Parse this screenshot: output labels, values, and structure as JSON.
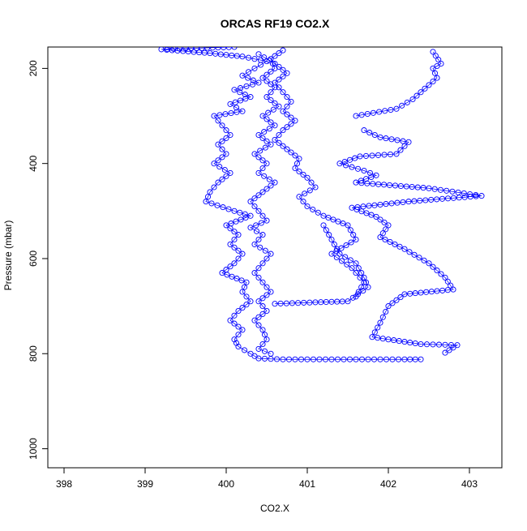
{
  "chart_data": {
    "type": "scatter",
    "title": "ORCAS RF19 CO2.X",
    "xlabel": "CO2.X",
    "ylabel": "Pressure (mbar)",
    "xlim": [
      397.8,
      403.4
    ],
    "ylim": [
      1040,
      155
    ],
    "y_inverted": true,
    "grid": false,
    "x_ticks": [
      398,
      399,
      400,
      401,
      402,
      403
    ],
    "y_ticks": [
      200,
      400,
      600,
      800,
      1000
    ],
    "colors": {
      "series": "#0000ff",
      "axes": "#000000"
    },
    "series": [
      {
        "segments": [
          [
            [
              400.1,
              155
            ],
            [
              399.5,
              158
            ],
            [
              399.2,
              160
            ],
            [
              399.8,
              168
            ],
            [
              400.2,
              175
            ],
            [
              400.5,
              185
            ],
            [
              400.35,
              200
            ],
            [
              400.2,
              215
            ],
            [
              400.4,
              230
            ],
            [
              400.1,
              245
            ],
            [
              400.3,
              260
            ],
            [
              400.05,
              275
            ],
            [
              400.2,
              290
            ],
            [
              399.85,
              300
            ],
            [
              399.95,
              320
            ],
            [
              400.05,
              340
            ],
            [
              399.9,
              360
            ],
            [
              400.0,
              380
            ],
            [
              399.85,
              400
            ],
            [
              400.05,
              420
            ],
            [
              399.9,
              440
            ],
            [
              399.8,
              460
            ],
            [
              399.75,
              480
            ],
            [
              400.1,
              500
            ],
            [
              400.3,
              510
            ],
            [
              400.0,
              530
            ],
            [
              400.15,
              550
            ],
            [
              400.05,
              570
            ],
            [
              400.2,
              590
            ],
            [
              400.1,
              610
            ],
            [
              399.95,
              630
            ],
            [
              400.25,
              650
            ],
            [
              400.2,
              670
            ],
            [
              400.3,
              690
            ],
            [
              400.15,
              710
            ],
            [
              400.05,
              730
            ],
            [
              400.2,
              750
            ],
            [
              400.1,
              770
            ],
            [
              400.15,
              785
            ],
            [
              400.3,
              800
            ],
            [
              400.4,
              810
            ],
            [
              400.7,
              812
            ],
            [
              401.0,
              812
            ],
            [
              401.3,
              812
            ],
            [
              401.6,
              812
            ],
            [
              401.9,
              812
            ],
            [
              402.2,
              812
            ],
            [
              402.4,
              812
            ]
          ],
          [
            [
              400.7,
              162
            ],
            [
              400.55,
              180
            ],
            [
              400.6,
              200
            ],
            [
              400.45,
              220
            ],
            [
              400.6,
              240
            ],
            [
              400.5,
              260
            ],
            [
              400.65,
              280
            ],
            [
              400.45,
              300
            ],
            [
              400.6,
              320
            ],
            [
              400.4,
              340
            ],
            [
              400.55,
              360
            ],
            [
              400.35,
              380
            ],
            [
              400.5,
              400
            ],
            [
              400.4,
              420
            ],
            [
              400.6,
              440
            ],
            [
              400.45,
              460
            ],
            [
              400.3,
              480
            ],
            [
              400.4,
              500
            ],
            [
              400.5,
              520
            ],
            [
              400.3,
              535
            ],
            [
              400.45,
              550
            ],
            [
              400.35,
              570
            ],
            [
              400.55,
              590
            ],
            [
              400.45,
              610
            ],
            [
              400.35,
              630
            ],
            [
              400.45,
              650
            ],
            [
              400.55,
              670
            ],
            [
              400.4,
              690
            ],
            [
              400.5,
              710
            ],
            [
              400.35,
              730
            ],
            [
              400.45,
              750
            ],
            [
              400.5,
              770
            ],
            [
              400.4,
              790
            ],
            [
              400.55,
              800
            ]
          ],
          [
            [
              400.4,
              170
            ],
            [
              400.6,
              190
            ],
            [
              400.75,
              210
            ],
            [
              400.6,
              230
            ],
            [
              400.7,
              250
            ],
            [
              400.8,
              270
            ],
            [
              400.7,
              290
            ],
            [
              400.85,
              310
            ],
            [
              400.7,
              330
            ],
            [
              400.6,
              350
            ],
            [
              400.75,
              370
            ],
            [
              400.9,
              390
            ],
            [
              400.85,
              410
            ],
            [
              401.0,
              430
            ],
            [
              401.1,
              450
            ],
            [
              400.9,
              470
            ],
            [
              401.0,
              490
            ],
            [
              401.2,
              510
            ],
            [
              401.5,
              530
            ],
            [
              401.6,
              560
            ],
            [
              401.3,
              590
            ],
            [
              401.55,
              620
            ],
            [
              401.7,
              650
            ],
            [
              401.6,
              680
            ]
          ],
          [
            [
              401.2,
              530
            ],
            [
              401.3,
              560
            ],
            [
              401.4,
              590
            ],
            [
              401.6,
              610
            ],
            [
              401.7,
              640
            ],
            [
              401.75,
              660
            ],
            [
              401.5,
              690
            ],
            [
              401.1,
              692
            ],
            [
              400.6,
              695
            ]
          ],
          [
            [
              401.6,
              300
            ],
            [
              402.1,
              285
            ],
            [
              402.3,
              265
            ],
            [
              402.4,
              250
            ],
            [
              402.5,
              235
            ],
            [
              402.6,
              220
            ],
            [
              402.55,
              200
            ],
            [
              402.65,
              190
            ],
            [
              402.55,
              165
            ]
          ],
          [
            [
              401.7,
              330
            ],
            [
              401.9,
              345
            ],
            [
              402.25,
              355
            ],
            [
              402.1,
              380
            ],
            [
              401.65,
              385
            ],
            [
              401.4,
              400
            ],
            [
              401.7,
              415
            ],
            [
              401.85,
              425
            ],
            [
              401.6,
              440
            ],
            [
              402.5,
              452
            ],
            [
              403.15,
              468
            ],
            [
              402.25,
              480
            ],
            [
              401.55,
              493
            ],
            [
              401.85,
              512
            ],
            [
              402.0,
              530
            ],
            [
              401.9,
              555
            ],
            [
              402.2,
              580
            ],
            [
              402.5,
              610
            ],
            [
              402.7,
              640
            ],
            [
              402.8,
              665
            ],
            [
              402.2,
              675
            ],
            [
              402.0,
              700
            ],
            [
              401.9,
              735
            ],
            [
              401.8,
              765
            ],
            [
              402.4,
              780
            ],
            [
              402.85,
              782
            ],
            [
              402.7,
              798
            ]
          ]
        ]
      }
    ]
  }
}
